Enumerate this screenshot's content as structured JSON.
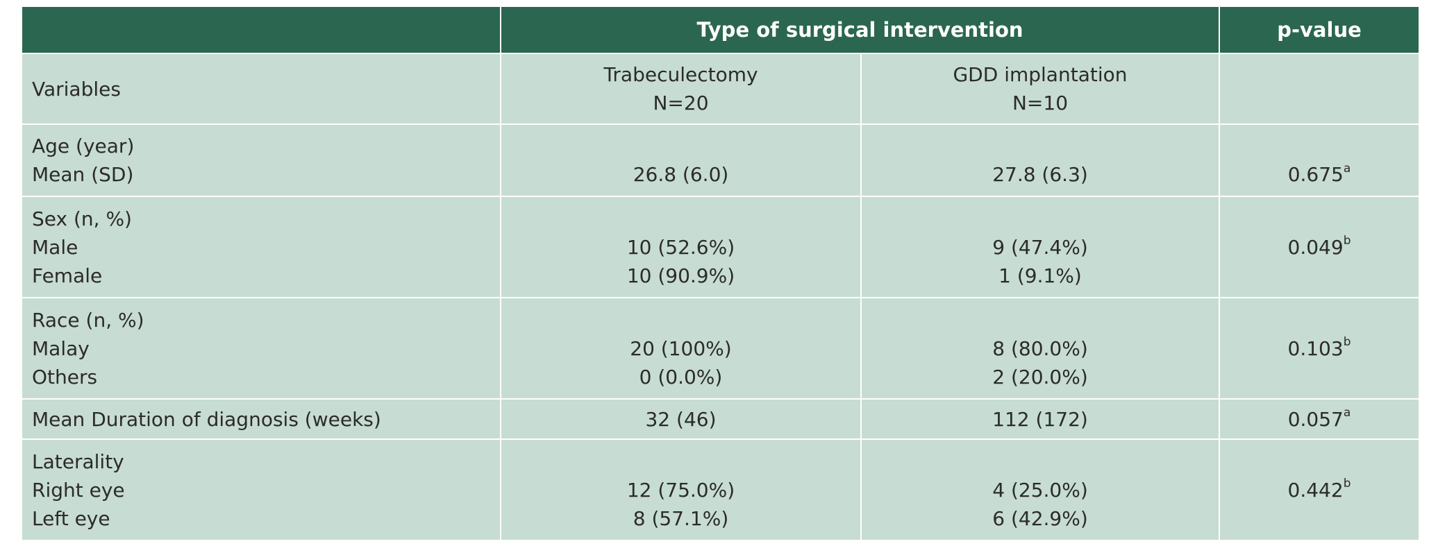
{
  "header": {
    "group_label": "Type of surgical intervention",
    "pvalue_label": "p-value"
  },
  "subheader": {
    "variables_label": "Variables",
    "col1": {
      "name": "Trabeculectomy",
      "n": "N=20"
    },
    "col2": {
      "name": "GDD implantation",
      "n": "N=10"
    }
  },
  "rows": {
    "age": {
      "label_lines": [
        "Age (year)",
        "Mean (SD)"
      ],
      "col1": "26.8 (6.0)",
      "col2": "27.8 (6.3)",
      "p": "0.675",
      "p_sup": "a"
    },
    "sex": {
      "label_lines": [
        "Sex (n, %)",
        "Male",
        "Female"
      ],
      "col1": [
        "10 (52.6%)",
        "10 (90.9%)"
      ],
      "col2": [
        "9 (47.4%)",
        "1 (9.1%)"
      ],
      "p": "0.049",
      "p_sup": "b"
    },
    "race": {
      "label_lines": [
        "Race (n, %)",
        "Malay",
        "Others"
      ],
      "col1": [
        "20 (100%)",
        "0 (0.0%)"
      ],
      "col2": [
        "8 (80.0%)",
        "2 (20.0%)"
      ],
      "p": "0.103",
      "p_sup": "b"
    },
    "duration": {
      "label": "Mean Duration of diagnosis (weeks)",
      "col1": "32 (46)",
      "col2": "112 (172)",
      "p": "0.057",
      "p_sup": "a"
    },
    "laterality": {
      "label_lines": [
        "Laterality",
        "Right eye",
        "Left eye"
      ],
      "col1": [
        "12 (75.0%)",
        "8 (57.1%)"
      ],
      "col2": [
        "4 (25.0%)",
        "6 (42.9%)"
      ],
      "p": "0.442",
      "p_sup": "b"
    }
  },
  "colors": {
    "header_bg": "#2b6651",
    "cell_bg": "#c7dcd2",
    "text": "#2b2b2b",
    "grid": "#ffffff"
  }
}
